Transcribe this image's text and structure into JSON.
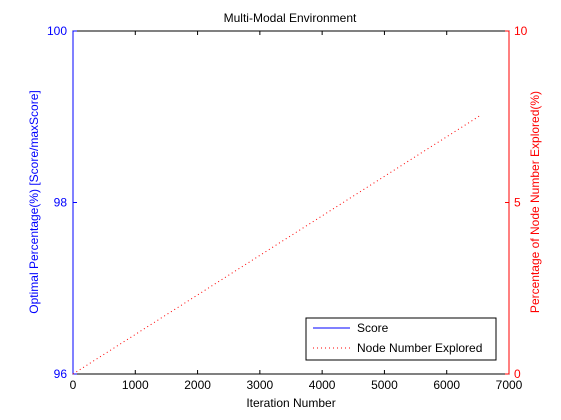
{
  "chart_data": {
    "type": "line",
    "title": "Multi-Modal Environment",
    "xlabel": "Iteration Number",
    "ylabel_left": "Optimal Percentage(%) [Score/maxScore]",
    "ylabel_right": "Percentage of Node Number Explored(%)",
    "xlim": [
      0,
      7000
    ],
    "ylim_left": [
      96,
      100
    ],
    "ylim_right": [
      0,
      10
    ],
    "x_ticks": [
      0,
      1000,
      2000,
      3000,
      4000,
      5000,
      6000,
      7000
    ],
    "x_tick_labels": [
      "0",
      "1000",
      "2000",
      "3000",
      "4000",
      "5000",
      "6000",
      "7000"
    ],
    "y_left_ticks": [
      96,
      98,
      100
    ],
    "y_left_tick_labels": [
      "96",
      "98",
      "100"
    ],
    "y_right_ticks": [
      0,
      5,
      10
    ],
    "y_right_tick_labels": [
      "0",
      "5",
      "10"
    ],
    "grid": false,
    "legend_position": "bottom-right",
    "left_axis_color": "#0000ff",
    "right_axis_color": "#ff0000",
    "series": [
      {
        "name": "Score",
        "axis": "left",
        "color": "#0000ff",
        "style": "solid",
        "x": [],
        "y": []
      },
      {
        "name": "Node Number Explored",
        "axis": "right",
        "color": "#ff0000",
        "style": "dotted",
        "x": [
          0,
          6550
        ],
        "y": [
          0,
          7.55
        ]
      }
    ]
  }
}
